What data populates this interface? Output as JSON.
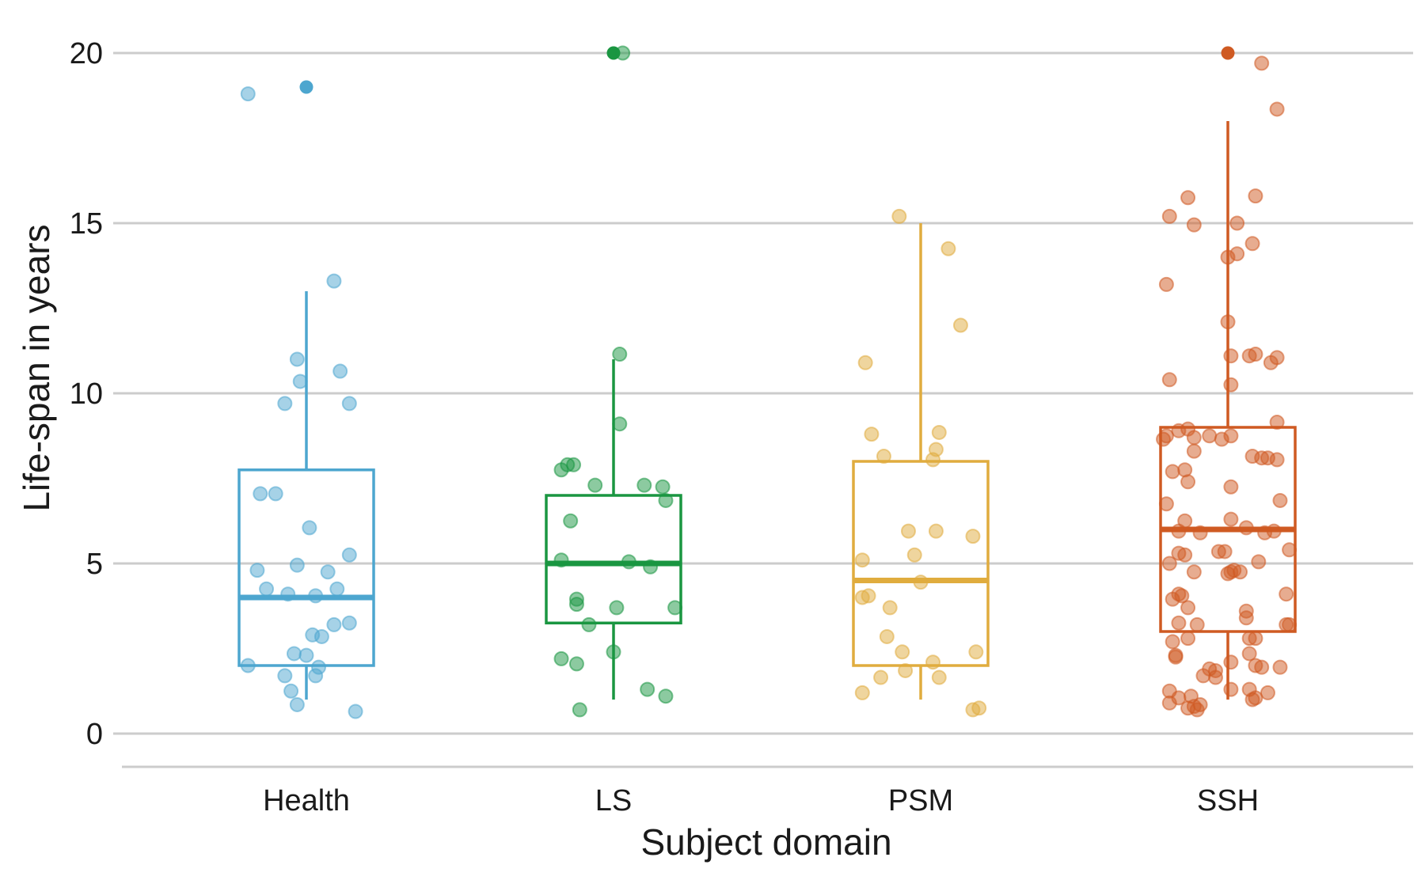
{
  "chart_data": {
    "type": "box",
    "title": "",
    "xlabel": "Subject domain",
    "ylabel": "Life-span in years",
    "ylim": [
      -1,
      20.5
    ],
    "yticks": [
      0,
      5,
      10,
      15,
      20
    ],
    "grid": "horizontal",
    "legend": "none",
    "categories": [
      "Health",
      "LS",
      "PSM",
      "SSH"
    ],
    "colors": {
      "Health": "#4da6cf",
      "LS": "#1a9641",
      "PSM": "#e0ac3e",
      "SSH": "#cf5a22",
      "grid": "#cccccc"
    },
    "boxes": [
      {
        "category": "Health",
        "q1": 2,
        "median": 4,
        "q3": 7.75,
        "whisker_low": 1,
        "whisker_high": 13,
        "outliers": [
          19
        ]
      },
      {
        "category": "LS",
        "q1": 3.25,
        "median": 5,
        "q3": 7,
        "whisker_low": 1,
        "whisker_high": 11,
        "outliers": [
          20
        ]
      },
      {
        "category": "PSM",
        "q1": 2,
        "median": 4.5,
        "q3": 8,
        "whisker_low": 1,
        "whisker_high": 15,
        "outliers": []
      },
      {
        "category": "SSH",
        "q1": 3,
        "median": 6,
        "q3": 9,
        "whisker_low": 1,
        "whisker_high": 18,
        "outliers": [
          20
        ]
      }
    ],
    "jitter_points": {
      "Health": [
        [
          -0.19,
          18.8
        ],
        [
          0.09,
          13.3
        ],
        [
          -0.03,
          11
        ],
        [
          -0.02,
          10.35
        ],
        [
          -0.07,
          9.7
        ],
        [
          0.11,
          10.65
        ],
        [
          0.14,
          9.7
        ],
        [
          -0.15,
          7.05
        ],
        [
          -0.1,
          7.05
        ],
        [
          0.01,
          6.05
        ],
        [
          -0.16,
          4.8
        ],
        [
          -0.03,
          4.95
        ],
        [
          0.07,
          4.75
        ],
        [
          0.14,
          5.25
        ],
        [
          -0.13,
          4.25
        ],
        [
          -0.06,
          4.1
        ],
        [
          0.03,
          4.05
        ],
        [
          0.1,
          4.25
        ],
        [
          0.02,
          2.9
        ],
        [
          0.05,
          2.85
        ],
        [
          0.09,
          3.2
        ],
        [
          0.14,
          3.25
        ],
        [
          -0.19,
          2.0
        ],
        [
          -0.04,
          2.35
        ],
        [
          0.0,
          2.3
        ],
        [
          0.04,
          1.95
        ],
        [
          -0.07,
          1.7
        ],
        [
          0.03,
          1.7
        ],
        [
          -0.05,
          1.25
        ],
        [
          -0.03,
          0.85
        ],
        [
          0.16,
          0.65
        ]
      ],
      "LS": [
        [
          0.03,
          20
        ],
        [
          0.02,
          11.15
        ],
        [
          0.02,
          9.1
        ],
        [
          -0.17,
          7.75
        ],
        [
          -0.15,
          7.9
        ],
        [
          -0.13,
          7.9
        ],
        [
          -0.06,
          7.3
        ],
        [
          0.1,
          7.3
        ],
        [
          0.16,
          7.25
        ],
        [
          0.17,
          6.85
        ],
        [
          -0.14,
          6.25
        ],
        [
          -0.17,
          5.1
        ],
        [
          0.05,
          5.05
        ],
        [
          0.12,
          4.9
        ],
        [
          -0.12,
          3.95
        ],
        [
          -0.12,
          3.8
        ],
        [
          0.01,
          3.7
        ],
        [
          0.2,
          3.7
        ],
        [
          -0.08,
          3.2
        ],
        [
          -0.17,
          2.2
        ],
        [
          -0.12,
          2.05
        ],
        [
          0.0,
          2.4
        ],
        [
          0.11,
          1.3
        ],
        [
          0.17,
          1.1
        ],
        [
          -0.11,
          0.7
        ]
      ],
      "PSM": [
        [
          -0.07,
          15.2
        ],
        [
          0.09,
          14.25
        ],
        [
          0.13,
          12
        ],
        [
          -0.18,
          10.9
        ],
        [
          -0.16,
          8.8
        ],
        [
          0.06,
          8.85
        ],
        [
          -0.12,
          8.15
        ],
        [
          0.05,
          8.35
        ],
        [
          0.04,
          8.05
        ],
        [
          -0.04,
          5.95
        ],
        [
          0.05,
          5.95
        ],
        [
          0.17,
          5.8
        ],
        [
          -0.19,
          5.1
        ],
        [
          -0.02,
          5.25
        ],
        [
          -0.17,
          4.05
        ],
        [
          -0.19,
          4.0
        ],
        [
          -0.1,
          3.7
        ],
        [
          0.0,
          4.45
        ],
        [
          -0.11,
          2.85
        ],
        [
          -0.06,
          2.4
        ],
        [
          0.04,
          2.1
        ],
        [
          0.18,
          2.4
        ],
        [
          -0.13,
          1.65
        ],
        [
          -0.05,
          1.85
        ],
        [
          0.06,
          1.65
        ],
        [
          -0.19,
          1.2
        ],
        [
          0.17,
          0.7
        ],
        [
          0.19,
          0.75
        ]
      ],
      "SSH": [
        [
          0.11,
          19.7
        ],
        [
          0.16,
          18.35
        ],
        [
          -0.19,
          15.2
        ],
        [
          -0.13,
          15.75
        ],
        [
          -0.11,
          14.95
        ],
        [
          0.03,
          15.0
        ],
        [
          0.09,
          15.8
        ],
        [
          0.0,
          14.0
        ],
        [
          0.03,
          14.1
        ],
        [
          0.08,
          14.4
        ],
        [
          -0.2,
          13.2
        ],
        [
          0.0,
          12.1
        ],
        [
          -0.19,
          10.4
        ],
        [
          0.01,
          10.25
        ],
        [
          0.01,
          11.1
        ],
        [
          0.07,
          11.1
        ],
        [
          0.09,
          11.15
        ],
        [
          0.14,
          10.9
        ],
        [
          0.16,
          11.05
        ],
        [
          -0.16,
          8.9
        ],
        [
          -0.13,
          8.95
        ],
        [
          -0.2,
          8.75
        ],
        [
          -0.21,
          8.65
        ],
        [
          -0.11,
          8.7
        ],
        [
          -0.06,
          8.75
        ],
        [
          -0.02,
          8.65
        ],
        [
          0.01,
          8.75
        ],
        [
          0.16,
          9.15
        ],
        [
          -0.18,
          7.7
        ],
        [
          -0.14,
          7.75
        ],
        [
          -0.13,
          7.4
        ],
        [
          -0.11,
          8.3
        ],
        [
          0.01,
          7.25
        ],
        [
          0.08,
          8.15
        ],
        [
          0.11,
          8.1
        ],
        [
          0.13,
          8.1
        ],
        [
          0.16,
          8.05
        ],
        [
          -0.2,
          6.75
        ],
        [
          0.01,
          6.3
        ],
        [
          0.06,
          6.05
        ],
        [
          0.17,
          6.85
        ],
        [
          -0.14,
          6.25
        ],
        [
          -0.16,
          5.95
        ],
        [
          -0.09,
          5.9
        ],
        [
          0.12,
          5.9
        ],
        [
          0.15,
          5.95
        ],
        [
          -0.16,
          5.3
        ],
        [
          -0.14,
          5.25
        ],
        [
          -0.03,
          5.35
        ],
        [
          -0.01,
          5.35
        ],
        [
          0.1,
          5.05
        ],
        [
          0.2,
          5.4
        ],
        [
          -0.19,
          5.0
        ],
        [
          -0.11,
          4.75
        ],
        [
          0.01,
          4.75
        ],
        [
          0.02,
          4.8
        ],
        [
          0.04,
          4.75
        ],
        [
          0.0,
          4.7
        ],
        [
          -0.18,
          3.95
        ],
        [
          -0.15,
          4.05
        ],
        [
          -0.16,
          4.1
        ],
        [
          -0.13,
          3.7
        ],
        [
          0.06,
          3.6
        ],
        [
          0.06,
          3.4
        ],
        [
          0.19,
          4.1
        ],
        [
          0.2,
          3.2
        ],
        [
          0.19,
          3.2
        ],
        [
          -0.16,
          3.25
        ],
        [
          -0.1,
          3.2
        ],
        [
          -0.18,
          2.7
        ],
        [
          -0.13,
          2.8
        ],
        [
          0.07,
          2.8
        ],
        [
          0.09,
          2.8
        ],
        [
          -0.17,
          2.3
        ],
        [
          -0.17,
          2.25
        ],
        [
          0.07,
          2.35
        ],
        [
          0.09,
          2.0
        ],
        [
          0.11,
          1.95
        ],
        [
          0.17,
          1.95
        ],
        [
          -0.06,
          1.9
        ],
        [
          -0.04,
          1.85
        ],
        [
          0.01,
          2.1
        ],
        [
          -0.04,
          1.65
        ],
        [
          -0.08,
          1.7
        ],
        [
          -0.19,
          1.25
        ],
        [
          -0.16,
          1.05
        ],
        [
          -0.12,
          1.1
        ],
        [
          -0.11,
          0.8
        ],
        [
          -0.09,
          0.85
        ],
        [
          -0.1,
          0.7
        ],
        [
          -0.13,
          0.75
        ],
        [
          -0.19,
          0.9
        ],
        [
          0.01,
          1.3
        ],
        [
          0.07,
          1.3
        ],
        [
          0.08,
          1.0
        ],
        [
          0.09,
          1.05
        ],
        [
          0.13,
          1.2
        ]
      ]
    }
  }
}
